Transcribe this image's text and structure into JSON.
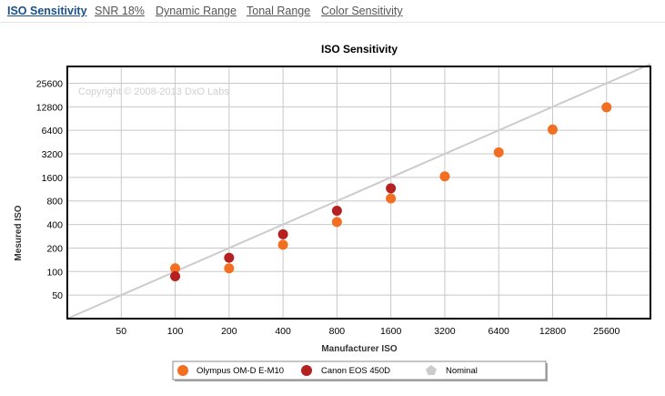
{
  "tabs": [
    {
      "label": "ISO Sensitivity",
      "active": true
    },
    {
      "label": "SNR 18%",
      "active": false
    },
    {
      "label": "Dynamic Range",
      "active": false
    },
    {
      "label": "Tonal Range",
      "active": false
    },
    {
      "label": "Color Sensitivity",
      "active": false
    }
  ],
  "colors": {
    "olympus": "#f26f21",
    "canon": "#b52020",
    "nominal": "#cccccc",
    "grid": "#c8c8c8",
    "active_tab": "#1a4f8b"
  },
  "chart_data": {
    "type": "scatter",
    "title": "ISO Sensitivity",
    "xlabel": "Manufacturer ISO",
    "ylabel": "Mesured ISO",
    "watermark": "Copyright © 2008-2013 DxO Labs",
    "x_scale": "log2",
    "y_scale": "log2",
    "xlim": [
      25,
      45000
    ],
    "ylim": [
      25,
      42000
    ],
    "grid": true,
    "legend_position": "bottom",
    "x_ticks": [
      50,
      100,
      200,
      400,
      800,
      1600,
      3200,
      6400,
      12800,
      25600
    ],
    "y_ticks": [
      50,
      100,
      200,
      400,
      800,
      1600,
      3200,
      6400,
      12800,
      25600
    ],
    "series": [
      {
        "name": "Olympus OM-D E-M10",
        "points": [
          {
            "x": 100,
            "y": 110
          },
          {
            "x": 200,
            "y": 110
          },
          {
            "x": 400,
            "y": 220
          },
          {
            "x": 800,
            "y": 430
          },
          {
            "x": 1600,
            "y": 860
          },
          {
            "x": 3200,
            "y": 1650
          },
          {
            "x": 6400,
            "y": 3350
          },
          {
            "x": 12800,
            "y": 6550
          },
          {
            "x": 25600,
            "y": 12600
          }
        ]
      },
      {
        "name": "Canon EOS 450D",
        "points": [
          {
            "x": 100,
            "y": 87
          },
          {
            "x": 200,
            "y": 150
          },
          {
            "x": 400,
            "y": 300
          },
          {
            "x": 800,
            "y": 600
          },
          {
            "x": 1600,
            "y": 1160
          }
        ]
      },
      {
        "name": "Nominal",
        "points": [
          {
            "x": 25,
            "y": 25
          },
          {
            "x": 45000,
            "y": 45000
          }
        ]
      }
    ]
  }
}
